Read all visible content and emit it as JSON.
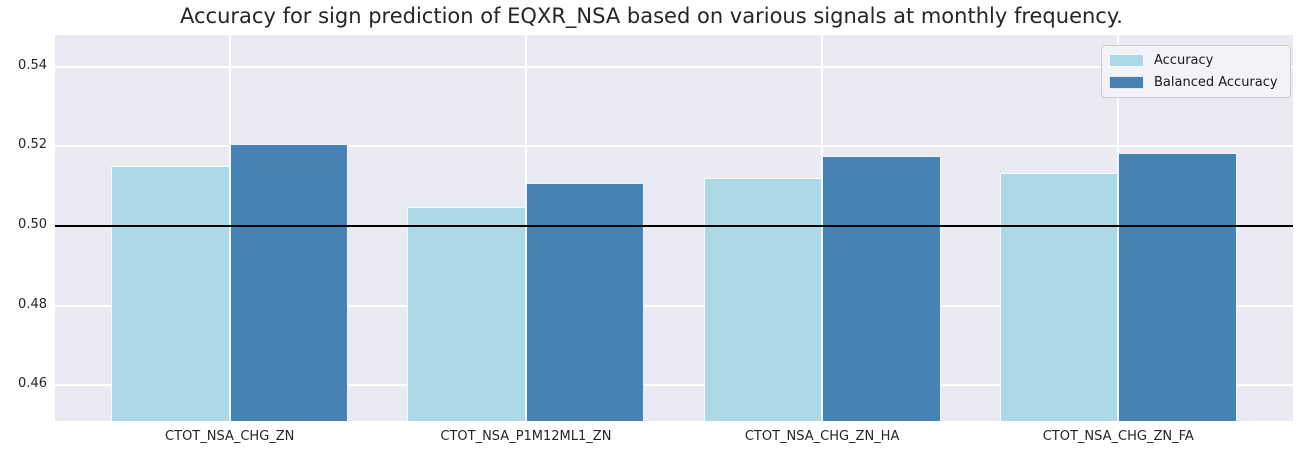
{
  "chart_data": {
    "type": "bar",
    "title": "Accuracy for sign prediction of EQXR_NSA based on various signals at monthly frequency.",
    "categories": [
      "CTOT_NSA_CHG_ZN",
      "CTOT_NSA_P1M12ML1_ZN",
      "CTOT_NSA_CHG_ZN_HA",
      "CTOT_NSA_CHG_ZN_FA"
    ],
    "series": [
      {
        "name": "Accuracy",
        "color": "#add8e6",
        "values": [
          0.515,
          0.5048,
          0.512,
          0.5133
        ]
      },
      {
        "name": "Balanced Accuracy",
        "color": "#4682b4",
        "values": [
          0.5206,
          0.5107,
          0.5176,
          0.5183
        ]
      }
    ],
    "xlabel": "",
    "ylabel": "",
    "ylim": [
      0.451,
      0.548
    ],
    "xlim": [
      -0.59,
      3.59
    ],
    "yticks": [
      0.46,
      0.48,
      0.5,
      0.52,
      0.54
    ],
    "ytick_labels": [
      "0.46",
      "0.48",
      "0.50",
      "0.52",
      "0.54"
    ],
    "bar_width": 0.4,
    "grid": true,
    "legend_position": "upper right",
    "reference_line": {
      "y": 0.5,
      "color": "#000000"
    },
    "colors": {
      "plot_background": "#eaeaf2",
      "gridline": "#ffffff",
      "text": "#262626",
      "legend_border": "#cccccc",
      "legend_background": "#f2f2f8"
    }
  }
}
